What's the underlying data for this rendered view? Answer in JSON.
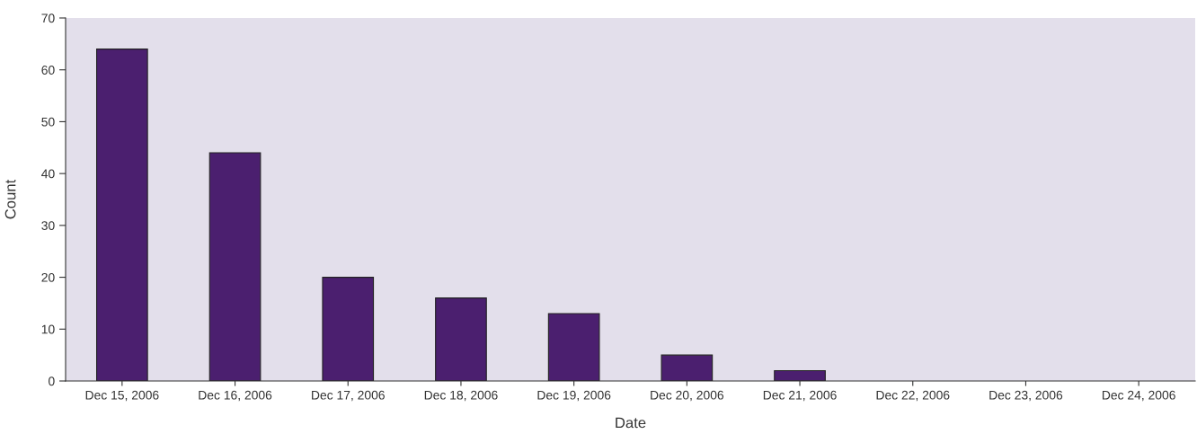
{
  "chart_data": {
    "type": "bar",
    "xlabel": "Date",
    "ylabel": "Count",
    "categories": [
      "Dec 15, 2006",
      "Dec 16, 2006",
      "Dec 17, 2006",
      "Dec 18, 2006",
      "Dec 19, 2006",
      "Dec 20, 2006",
      "Dec 21, 2006",
      "Dec 22, 2006",
      "Dec 23, 2006",
      "Dec 24, 2006"
    ],
    "values": [
      64,
      44,
      20,
      16,
      13,
      5,
      2,
      0,
      0,
      0
    ],
    "color": "#4b1f6f",
    "ylim": [
      0,
      70
    ],
    "yticks": [
      0,
      10,
      20,
      30,
      40,
      50,
      60,
      70
    ],
    "grid": false,
    "legend": false
  }
}
